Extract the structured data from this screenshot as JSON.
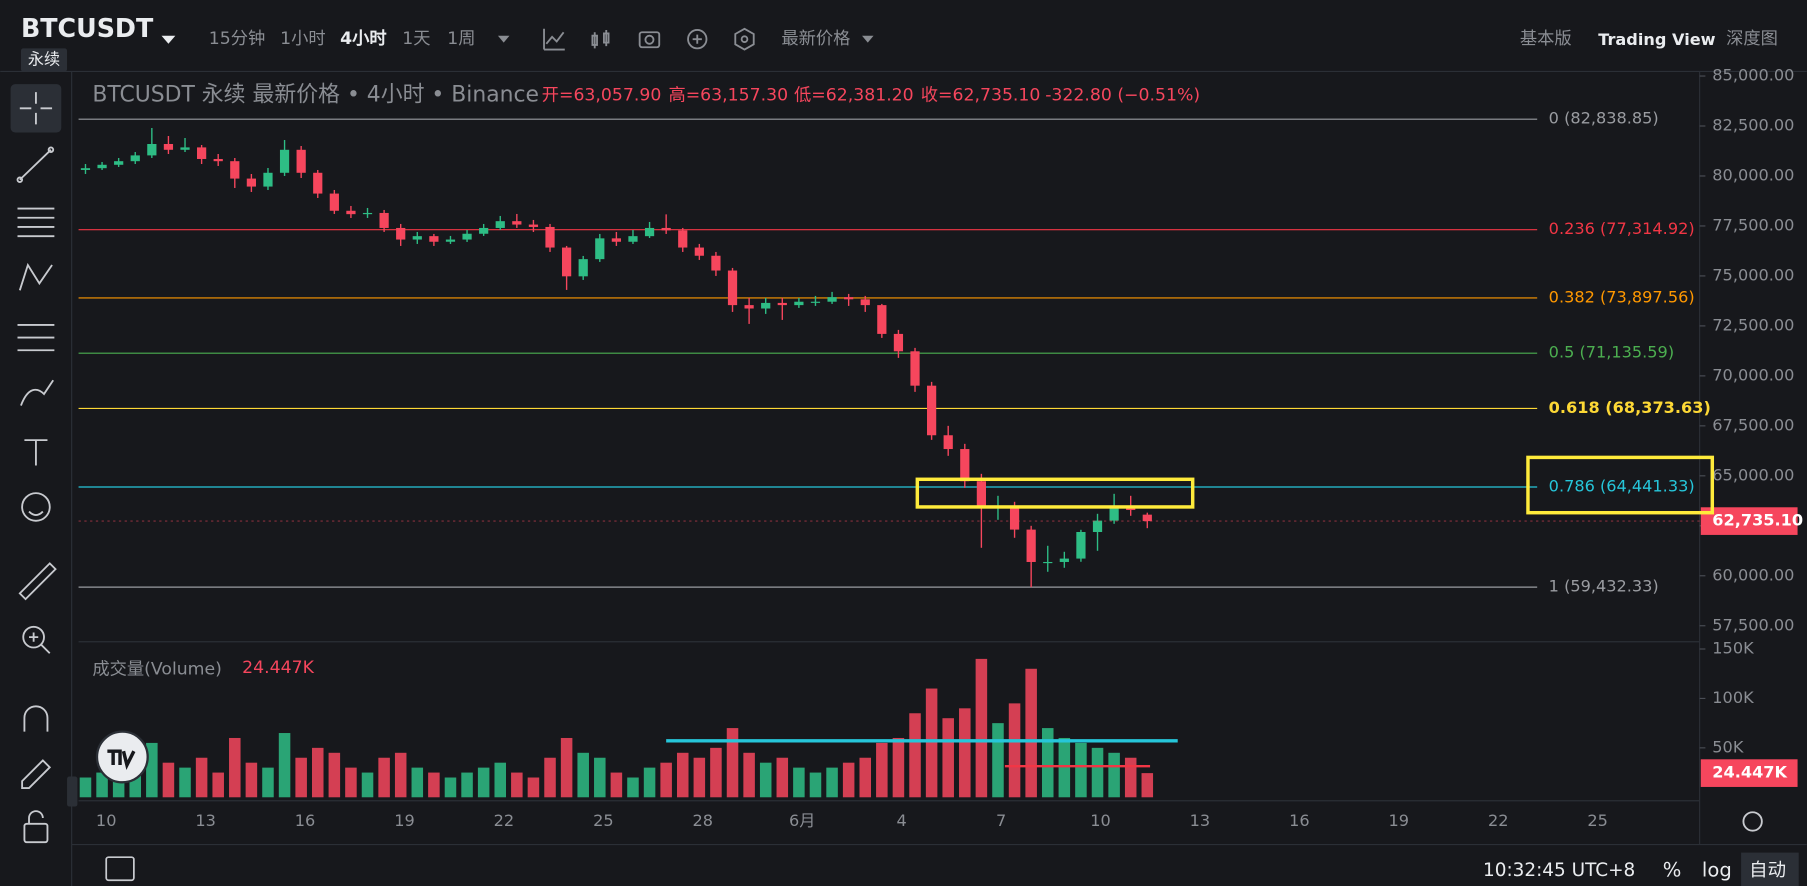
{
  "toolbar": {
    "symbol": "BTCUSDT",
    "contract": "永续",
    "intervals": [
      "15分钟",
      "1小时",
      "4小时",
      "1天",
      "1周"
    ],
    "price_type": "最新价格",
    "views": [
      "基本版",
      "Trading View",
      "深度图"
    ]
  },
  "chart_data": {
    "type": "candlestick",
    "title": "BTCUSDT 永续 最新价格 • 4小时 • Binance",
    "ohlc_labels": [
      "开=63,057.90",
      "高=63,157.30",
      "低=62,381.20",
      "收=62,735.10",
      "-322.80 (−0.51%)"
    ],
    "up_color": "#2ebd85",
    "down_color": "#f6465d",
    "candles": [
      [
        80300,
        80600,
        80100,
        80390
      ],
      [
        80390,
        80700,
        80300,
        80560
      ],
      [
        80560,
        80900,
        80450,
        80740
      ],
      [
        80740,
        81200,
        80600,
        81030
      ],
      [
        81030,
        82400,
        80900,
        81600
      ],
      [
        81600,
        82000,
        81100,
        81310
      ],
      [
        81310,
        81900,
        81200,
        81430
      ],
      [
        81430,
        81550,
        80600,
        80850
      ],
      [
        80850,
        81100,
        80500,
        80740
      ],
      [
        80740,
        80900,
        79400,
        79870
      ],
      [
        79870,
        80100,
        79200,
        79470
      ],
      [
        79470,
        80400,
        79300,
        80160
      ],
      [
        80160,
        81800,
        80000,
        81310
      ],
      [
        81310,
        81500,
        79900,
        80160
      ],
      [
        80160,
        80300,
        78900,
        79120
      ],
      [
        79120,
        79300,
        78100,
        78260
      ],
      [
        78260,
        78500,
        77900,
        78090
      ],
      [
        78090,
        78400,
        77900,
        78150
      ],
      [
        78150,
        78300,
        77200,
        77400
      ],
      [
        77400,
        77600,
        76500,
        76820
      ],
      [
        76820,
        77200,
        76600,
        76990
      ],
      [
        76990,
        77100,
        76500,
        76710
      ],
      [
        76710,
        77000,
        76600,
        76820
      ],
      [
        76820,
        77300,
        76700,
        77110
      ],
      [
        77110,
        77600,
        77000,
        77400
      ],
      [
        77400,
        78000,
        77300,
        77740
      ],
      [
        77740,
        78100,
        77400,
        77570
      ],
      [
        77570,
        77800,
        77200,
        77450
      ],
      [
        77450,
        77600,
        76200,
        76420
      ],
      [
        76420,
        76500,
        74300,
        74980
      ],
      [
        74980,
        76000,
        74800,
        75840
      ],
      [
        75840,
        77100,
        75700,
        76880
      ],
      [
        76880,
        77200,
        76500,
        76710
      ],
      [
        76710,
        77300,
        76600,
        76990
      ],
      [
        76990,
        77700,
        76900,
        77400
      ],
      [
        77400,
        78080,
        77100,
        77280
      ],
      [
        77280,
        77400,
        76200,
        76420
      ],
      [
        76420,
        76600,
        75800,
        76010
      ],
      [
        76010,
        76200,
        75000,
        75270
      ],
      [
        75270,
        75400,
        73200,
        73540
      ],
      [
        73540,
        73900,
        72600,
        73370
      ],
      [
        73370,
        73900,
        73100,
        73650
      ],
      [
        73650,
        73900,
        72800,
        73540
      ],
      [
        73540,
        73900,
        73400,
        73710
      ],
      [
        73710,
        74000,
        73500,
        73710
      ],
      [
        73710,
        74200,
        73600,
        73940
      ],
      [
        73940,
        74100,
        73500,
        73830
      ],
      [
        73830,
        74000,
        73200,
        73540
      ],
      [
        73540,
        73600,
        71900,
        72100
      ],
      [
        72100,
        72300,
        70900,
        71230
      ],
      [
        71230,
        71400,
        69200,
        69510
      ],
      [
        69510,
        69700,
        66800,
        67030
      ],
      [
        67030,
        67500,
        66000,
        66340
      ],
      [
        66340,
        66600,
        64400,
        64730
      ],
      [
        64730,
        65100,
        61400,
        63460
      ],
      [
        63460,
        64000,
        62800,
        63460
      ],
      [
        63460,
        63700,
        61900,
        62310
      ],
      [
        62310,
        62500,
        59430,
        60690
      ],
      [
        60690,
        61500,
        60200,
        60690
      ],
      [
        60690,
        61200,
        60400,
        60860
      ],
      [
        60860,
        62300,
        60700,
        62190
      ],
      [
        62190,
        63100,
        61250,
        62760
      ],
      [
        62760,
        64100,
        62600,
        63460
      ],
      [
        63460,
        64000,
        63000,
        63290
      ],
      [
        63057.9,
        63157.3,
        62381.2,
        62735.1
      ]
    ],
    "last_price_label": "62,735.10",
    "ylim": [
      56700,
      85230
    ],
    "yticks": [
      {
        "value": 85000,
        "label": "85,000.00"
      },
      {
        "value": 82500,
        "label": "82,500.00"
      },
      {
        "value": 80000,
        "label": "80,000.00"
      },
      {
        "value": 77500,
        "label": "77,500.00"
      },
      {
        "value": 75000,
        "label": "75,000.00"
      },
      {
        "value": 72500,
        "label": "72,500.00"
      },
      {
        "value": 70000,
        "label": "70,000.00"
      },
      {
        "value": 67500,
        "label": "67,500.00"
      },
      {
        "value": 65000,
        "label": "65,000.00"
      },
      {
        "value": 62500,
        "label": "62,500.00"
      },
      {
        "value": 60000,
        "label": "60,000.00"
      },
      {
        "value": 57500,
        "label": "57,500.00"
      }
    ],
    "xticks": [
      "10",
      "13",
      "16",
      "19",
      "22",
      "25",
      "28",
      "6月",
      "4",
      "7",
      "10",
      "13",
      "16",
      "19",
      "22",
      "25"
    ],
    "fib_levels": [
      {
        "price": 82838.85,
        "label": "0 (82,838.85)",
        "color": "#9a9ca1"
      },
      {
        "price": 77314.92,
        "label": "0.236 (77,314.92)",
        "color": "#f23645"
      },
      {
        "price": 73897.56,
        "label": "0.382 (73,897.56)",
        "color": "#ff9800"
      },
      {
        "price": 71135.59,
        "label": "0.5 (71,135.59)",
        "color": "#4caf50"
      },
      {
        "price": 68373.63,
        "label": "0.618 (68,373.63)",
        "color": "#fdd835"
      },
      {
        "price": 64441.33,
        "label": "0.786 (64,441.33)",
        "color": "#26c6da"
      },
      {
        "price": 59432.33,
        "label": "1 (59,432.33)",
        "color": "#9a9ca1"
      }
    ],
    "volume": {
      "title": "成交量(Volume)",
      "current": 24.447,
      "current_label": "24.447K",
      "values": [
        20,
        25,
        30,
        28,
        55,
        35,
        30,
        40,
        25,
        60,
        35,
        30,
        65,
        40,
        50,
        45,
        30,
        25,
        40,
        45,
        30,
        25,
        20,
        25,
        30,
        35,
        25,
        20,
        40,
        60,
        45,
        40,
        25,
        20,
        30,
        35,
        45,
        40,
        50,
        70,
        45,
        35,
        40,
        30,
        25,
        30,
        35,
        40,
        55,
        60,
        85,
        110,
        80,
        90,
        140,
        75,
        95,
        130,
        70,
        60,
        55,
        50,
        45,
        40,
        24.447
      ],
      "ylim": [
        0,
        162
      ],
      "yticks": [
        {
          "value": 150,
          "label": "150K"
        },
        {
          "value": 100,
          "label": "100K"
        },
        {
          "value": 50,
          "label": "50K"
        }
      ]
    }
  },
  "status_bar": {
    "time": "10:32:45 UTC+8",
    "percent": "%",
    "log": "log",
    "auto": "自动"
  }
}
